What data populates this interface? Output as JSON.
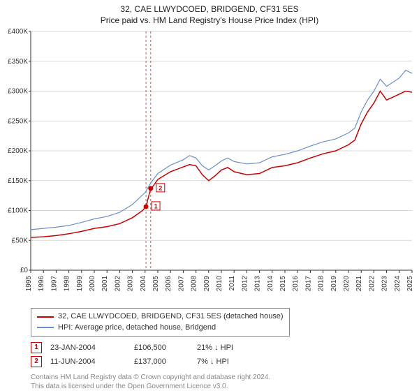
{
  "title_line1": "32, CAE LLWYDCOED, BRIDGEND, CF31 5ES",
  "title_line2": "Price paid vs. HM Land Registry's House Price Index (HPI)",
  "chart": {
    "type": "line",
    "background_color": "#ffffff",
    "grid_color": "#d9d9d9",
    "marker_vline_color": "#cc0000",
    "marker_vline_dash": "3,3",
    "font_size_axis": 10,
    "x_years": [
      1995,
      1996,
      1997,
      1998,
      1999,
      2000,
      2001,
      2002,
      2003,
      2004,
      2005,
      2006,
      2007,
      2008,
      2009,
      2010,
      2011,
      2012,
      2013,
      2014,
      2015,
      2016,
      2017,
      2018,
      2019,
      2020,
      2021,
      2022,
      2023,
      2024,
      2025
    ],
    "ylim": [
      0,
      400000
    ],
    "ytick_step": 50000,
    "ytick_labels": [
      "£0",
      "£50K",
      "£100K",
      "£150K",
      "£200K",
      "£250K",
      "£300K",
      "£350K",
      "£400K"
    ],
    "series": [
      {
        "name": "price_paid",
        "label": "32, CAE LLWYDCOED, BRIDGEND, CF31 5ES (detached house)",
        "color": "#cc0000",
        "line_width": 1.5,
        "data": [
          [
            1995,
            55000
          ],
          [
            1996,
            56000
          ],
          [
            1997,
            58000
          ],
          [
            1998,
            61000
          ],
          [
            1999,
            65000
          ],
          [
            2000,
            70000
          ],
          [
            2001,
            73000
          ],
          [
            2002,
            78000
          ],
          [
            2003,
            88000
          ],
          [
            2003.8,
            100000
          ],
          [
            2004.07,
            106500
          ],
          [
            2004.44,
            137000
          ],
          [
            2004.6,
            140000
          ],
          [
            2005,
            152000
          ],
          [
            2006,
            165000
          ],
          [
            2007,
            173000
          ],
          [
            2007.5,
            177000
          ],
          [
            2008,
            175000
          ],
          [
            2008.5,
            160000
          ],
          [
            2009,
            150000
          ],
          [
            2009.5,
            158000
          ],
          [
            2010,
            168000
          ],
          [
            2010.5,
            172000
          ],
          [
            2011,
            165000
          ],
          [
            2012,
            160000
          ],
          [
            2013,
            162000
          ],
          [
            2014,
            172000
          ],
          [
            2015,
            175000
          ],
          [
            2016,
            180000
          ],
          [
            2017,
            188000
          ],
          [
            2018,
            195000
          ],
          [
            2019,
            200000
          ],
          [
            2020,
            210000
          ],
          [
            2020.5,
            218000
          ],
          [
            2021,
            245000
          ],
          [
            2021.5,
            265000
          ],
          [
            2022,
            280000
          ],
          [
            2022.5,
            300000
          ],
          [
            2023,
            285000
          ],
          [
            2023.5,
            290000
          ],
          [
            2024,
            295000
          ],
          [
            2024.5,
            300000
          ],
          [
            2025,
            298000
          ]
        ]
      },
      {
        "name": "hpi",
        "label": "HPI: Average price, detached house, Bridgend",
        "color": "#6b8fc9",
        "line_width": 1.2,
        "data": [
          [
            1995,
            68000
          ],
          [
            1996,
            70000
          ],
          [
            1997,
            72000
          ],
          [
            1998,
            75000
          ],
          [
            1999,
            80000
          ],
          [
            2000,
            86000
          ],
          [
            2001,
            90000
          ],
          [
            2002,
            97000
          ],
          [
            2003,
            110000
          ],
          [
            2004,
            130000
          ],
          [
            2004.5,
            148000
          ],
          [
            2005,
            162000
          ],
          [
            2006,
            176000
          ],
          [
            2007,
            185000
          ],
          [
            2007.5,
            192000
          ],
          [
            2008,
            188000
          ],
          [
            2008.5,
            175000
          ],
          [
            2009,
            168000
          ],
          [
            2009.5,
            175000
          ],
          [
            2010,
            183000
          ],
          [
            2010.5,
            188000
          ],
          [
            2011,
            182000
          ],
          [
            2012,
            178000
          ],
          [
            2013,
            180000
          ],
          [
            2014,
            190000
          ],
          [
            2015,
            194000
          ],
          [
            2016,
            200000
          ],
          [
            2017,
            208000
          ],
          [
            2018,
            215000
          ],
          [
            2019,
            220000
          ],
          [
            2020,
            230000
          ],
          [
            2020.5,
            238000
          ],
          [
            2021,
            265000
          ],
          [
            2021.5,
            285000
          ],
          [
            2022,
            300000
          ],
          [
            2022.5,
            320000
          ],
          [
            2023,
            308000
          ],
          [
            2023.5,
            315000
          ],
          [
            2024,
            322000
          ],
          [
            2024.5,
            335000
          ],
          [
            2025,
            330000
          ]
        ]
      }
    ],
    "markers": [
      {
        "n": 1,
        "x": 2004.07,
        "y": 106500,
        "box_color": "#cc0000"
      },
      {
        "n": 2,
        "x": 2004.44,
        "y": 137000,
        "box_color": "#cc0000"
      }
    ]
  },
  "legend": {
    "items": [
      {
        "color": "#cc0000",
        "label": "32, CAE LLWYDCOED, BRIDGEND, CF31 5ES (detached house)"
      },
      {
        "color": "#6b8fc9",
        "label": "HPI: Average price, detached house, Bridgend"
      }
    ]
  },
  "transactions": [
    {
      "n": "1",
      "date": "23-JAN-2004",
      "price": "£106,500",
      "diff": "21% ↓ HPI"
    },
    {
      "n": "2",
      "date": "11-JUN-2004",
      "price": "£137,000",
      "diff": "7% ↓ HPI"
    }
  ],
  "footer_line1": "Contains HM Land Registry data © Crown copyright and database right 2024.",
  "footer_line2": "This data is licensed under the Open Government Licence v3.0."
}
